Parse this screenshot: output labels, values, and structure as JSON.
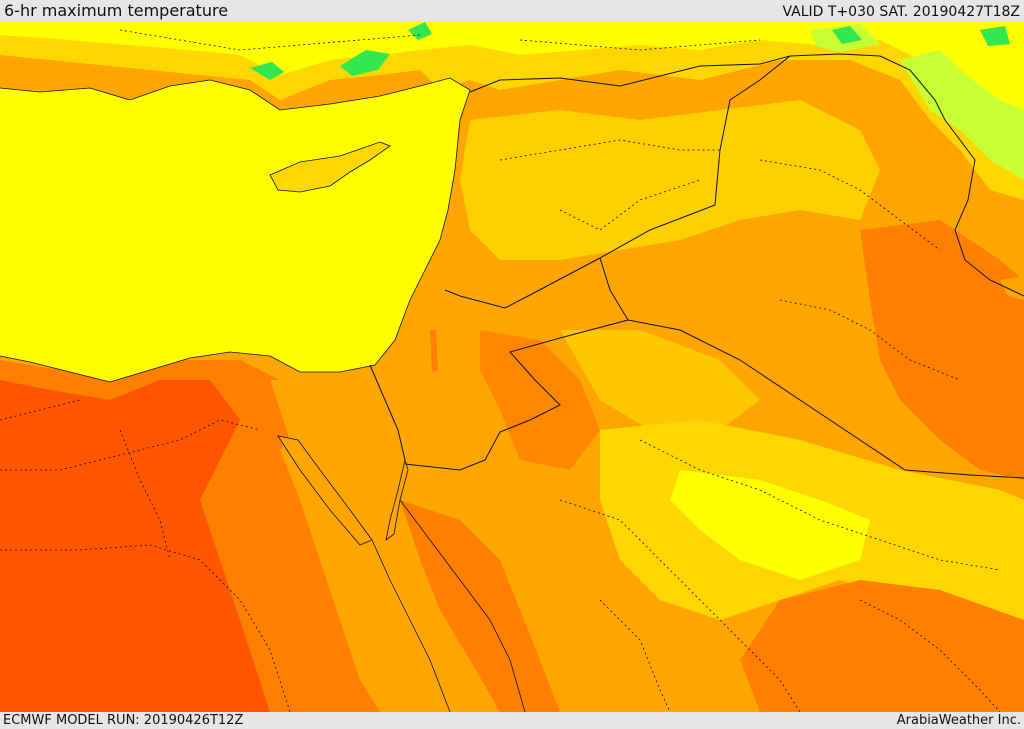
{
  "header": {
    "title": "6-hr maximum temperature",
    "valid": "VALID T+030 SAT. 20190427T18Z"
  },
  "footer": {
    "model_run": "ECMWF MODEL RUN: 20190426T12Z",
    "credit": "ArabiaWeather Inc."
  },
  "map": {
    "region": "Eastern Mediterranean and Middle East",
    "colors": {
      "sea": "#ffff00",
      "land_warm": "#ffa500",
      "land_mild": "#ffd700",
      "land_hot": "#ff8000",
      "land_hottest": "#ff5500",
      "land_cool": "#ffff00",
      "land_cooler": "#c8ff32",
      "land_coolest": "#32e650",
      "borders": "#111111"
    }
  }
}
